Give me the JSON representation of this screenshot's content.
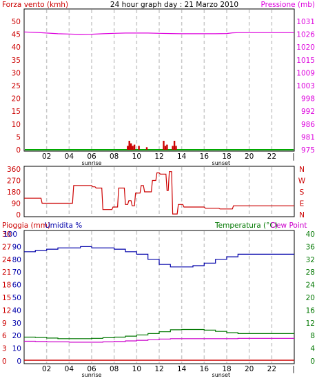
{
  "header": {
    "left_label": "Forza vento (kmh)",
    "title": "24 hour graph day : 21 Marzo 2010",
    "right_label": "Pressione (mb)"
  },
  "bottom_header": {
    "rain_label": "Pioggia (mm)",
    "humidity_label": "Umidita %",
    "temp_label": "Temperatura (°C)",
    "dew_label": "Dew Point"
  },
  "hour_labels": [
    "02",
    "04",
    "06",
    "08",
    "10",
    "12",
    "14",
    "16",
    "18",
    "20",
    "22"
  ],
  "sunrise_label": "sunrise",
  "sunset_label": "sunset",
  "colors": {
    "wind": "#cc0000",
    "pressure": "#dd00dd",
    "humidity": "#0000aa",
    "temperature": "#007700",
    "dewpoint": "#cc00cc",
    "rain": "#cc0000",
    "grid": "#c8c8c8"
  },
  "chart_data": [
    {
      "type": "line",
      "title": "24 hour graph day : 21 Marzo 2010",
      "left_axis": {
        "label": "Forza vento (kmh)",
        "ticks": [
          "0",
          "5",
          "10",
          "15",
          "20",
          "25",
          "30",
          "35",
          "40",
          "45",
          "50"
        ],
        "range": [
          0,
          50
        ]
      },
      "right_axis": {
        "label": "Pressione (mb)",
        "ticks": [
          "975",
          "981",
          "986",
          "992",
          "998",
          "1003",
          "1009",
          "1015",
          "1020",
          "1026",
          "1031"
        ],
        "range": [
          975,
          1031
        ]
      },
      "x_range_hours": [
        0,
        24
      ],
      "grid": "vertical dashed every 2 hours",
      "series": [
        {
          "name": "Pressione (mb)",
          "axis": "right",
          "x": [
            0,
            1,
            2,
            3,
            4,
            5,
            6,
            7,
            8,
            9,
            10,
            11,
            12,
            13,
            14,
            15,
            16,
            17,
            18,
            18.5,
            19,
            20,
            22,
            24
          ],
          "y": [
            1026.4,
            1026.2,
            1025.9,
            1025.6,
            1025.5,
            1025.3,
            1025.4,
            1025.6,
            1025.8,
            1025.9,
            1025.9,
            1025.9,
            1025.8,
            1025.7,
            1025.6,
            1025.6,
            1025.6,
            1025.6,
            1025.7,
            1026.0,
            1026.1,
            1026.1,
            1026.1,
            1026.1
          ]
        },
        {
          "name": "Forza vento (kmh)",
          "axis": "left",
          "type": "bar",
          "x": [
            9.2,
            9.35,
            9.5,
            9.65,
            9.8,
            10.2,
            10.9,
            12.4,
            12.55,
            12.7,
            13.2,
            13.35,
            13.5
          ],
          "y": [
            1.5,
            3.5,
            2.5,
            1.5,
            2.0,
            1.5,
            1.0,
            3.5,
            1.5,
            2.0,
            1.5,
            3.5,
            1.5
          ]
        }
      ]
    },
    {
      "type": "line",
      "left_axis": {
        "ticks": [
          "0",
          "90",
          "180",
          "270",
          "360"
        ],
        "range": [
          0,
          360
        ]
      },
      "right_axis": {
        "ticks": [
          "N",
          "E",
          "S",
          "W",
          "N"
        ]
      },
      "x_range_hours": [
        0,
        24
      ],
      "series": [
        {
          "name": "Direzione vento",
          "x": [
            0,
            0.05,
            1.5,
            1.6,
            4.3,
            4.4,
            6.0,
            6.1,
            6.3,
            6.4,
            6.9,
            7.0,
            7.8,
            7.9,
            8.3,
            8.4,
            8.9,
            9.0,
            9.2,
            9.3,
            9.5,
            9.6,
            9.8,
            9.9,
            10.3,
            10.4,
            10.6,
            10.7,
            11.3,
            11.4,
            11.7,
            11.8,
            12.0,
            12.1,
            12.6,
            12.7,
            12.8,
            12.9,
            13.1,
            13.2,
            13.6,
            13.7,
            14.1,
            14.2,
            16.0,
            16.1,
            17.3,
            17.4,
            18.5,
            18.6,
            24
          ],
          "y": [
            130,
            130,
            130,
            90,
            90,
            230,
            230,
            220,
            220,
            210,
            210,
            40,
            40,
            60,
            60,
            210,
            210,
            80,
            80,
            110,
            110,
            70,
            70,
            170,
            170,
            230,
            230,
            180,
            180,
            270,
            270,
            330,
            330,
            320,
            320,
            190,
            190,
            340,
            340,
            5,
            5,
            80,
            80,
            60,
            60,
            50,
            50,
            45,
            45,
            70,
            70
          ]
        }
      ]
    },
    {
      "type": "line",
      "left_axis_rain": {
        "label": "Pioggia (mm)",
        "ticks": [
          "0",
          "3",
          "6",
          "9",
          "12",
          "15",
          "18",
          "21",
          "24",
          "27",
          "30"
        ],
        "range": [
          0,
          30
        ]
      },
      "left_axis_humidity": {
        "label": "Umidita %",
        "ticks": [
          "0",
          "10",
          "20",
          "30",
          "40",
          "50",
          "60",
          "70",
          "80",
          "90",
          "100"
        ],
        "range": [
          0,
          100
        ]
      },
      "right_axis": {
        "label": "Temperatura (°C)Dew Point",
        "ticks": [
          "0",
          "4",
          "8",
          "12",
          "16",
          "20",
          "24",
          "28",
          "32",
          "36",
          "40"
        ],
        "range": [
          0,
          40
        ]
      },
      "x_range_hours": [
        0,
        24
      ],
      "series": [
        {
          "name": "Umidita %",
          "axis": "humidity",
          "x": [
            0,
            1,
            2,
            3,
            4,
            5,
            6,
            7,
            8,
            9,
            10,
            11,
            12,
            13,
            14,
            15,
            16,
            17,
            18,
            19,
            20,
            22,
            24
          ],
          "y": [
            86,
            87,
            88,
            89,
            89,
            90,
            89,
            89,
            88,
            86,
            84,
            80,
            76,
            74,
            74,
            75,
            77,
            80,
            82,
            84,
            84,
            84,
            84
          ]
        },
        {
          "name": "Temperatura (°C)",
          "axis": "right",
          "x": [
            0,
            1,
            2,
            3,
            4,
            5,
            6,
            7,
            8,
            9,
            10,
            11,
            12,
            13,
            14,
            15,
            16,
            17,
            18,
            19,
            20,
            22,
            24
          ],
          "y": [
            7.5,
            7.4,
            7.2,
            7.0,
            7.0,
            7.0,
            7.1,
            7.3,
            7.5,
            7.8,
            8.2,
            8.6,
            9.2,
            9.8,
            9.9,
            9.9,
            9.7,
            9.3,
            8.9,
            8.6,
            8.6,
            8.6,
            8.6
          ]
        },
        {
          "name": "Dew Point",
          "axis": "right",
          "x": [
            0,
            1,
            2,
            3,
            4,
            5,
            6,
            7,
            8,
            9,
            10,
            11,
            12,
            13,
            14,
            15,
            16,
            17,
            18,
            19,
            20,
            22,
            24
          ],
          "y": [
            6.2,
            6.1,
            6.0,
            6.0,
            5.9,
            5.9,
            5.9,
            6.0,
            6.1,
            6.3,
            6.5,
            6.7,
            6.9,
            7.0,
            7.0,
            7.0,
            7.0,
            7.0,
            7.0,
            7.1,
            7.1,
            7.1,
            7.1
          ]
        },
        {
          "name": "Pioggia (mm)",
          "axis": "rain",
          "x": [
            0,
            24
          ],
          "y": [
            0,
            0
          ]
        }
      ]
    }
  ]
}
